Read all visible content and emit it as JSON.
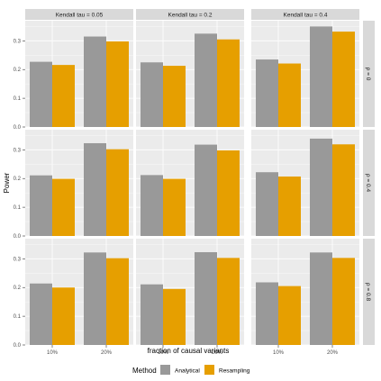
{
  "chart_data": {
    "type": "bar",
    "facet_cols": [
      "Kendall tau = 0.05",
      "Kendall tau = 0.2",
      "Kendall tau = 0.4"
    ],
    "facet_rows": [
      "ρ = 0",
      "ρ = 0.4",
      "ρ = 0.8"
    ],
    "categories": [
      "10%",
      "20%"
    ],
    "series": [
      {
        "name": "Analytical",
        "color": "#999999"
      },
      {
        "name": "Resampling",
        "color": "#E69F00"
      }
    ],
    "values": [
      [
        {
          "Analytical": [
            0.227,
            0.315
          ],
          "Resampling": [
            0.216,
            0.298
          ]
        },
        {
          "Analytical": [
            0.225,
            0.325
          ],
          "Resampling": [
            0.213,
            0.305
          ]
        },
        {
          "Analytical": [
            0.235,
            0.35
          ],
          "Resampling": [
            0.221,
            0.332
          ]
        }
      ],
      [
        {
          "Analytical": [
            0.211,
            0.323
          ],
          "Resampling": [
            0.199,
            0.302
          ]
        },
        {
          "Analytical": [
            0.212,
            0.318
          ],
          "Resampling": [
            0.199,
            0.298
          ]
        },
        {
          "Analytical": [
            0.222,
            0.339
          ],
          "Resampling": [
            0.207,
            0.319
          ]
        }
      ],
      [
        {
          "Analytical": [
            0.214,
            0.322
          ],
          "Resampling": [
            0.2,
            0.302
          ]
        },
        {
          "Analytical": [
            0.211,
            0.323
          ],
          "Resampling": [
            0.195,
            0.303
          ]
        },
        {
          "Analytical": [
            0.218,
            0.322
          ],
          "Resampling": [
            0.205,
            0.303
          ]
        }
      ]
    ],
    "yticks": [
      0.0,
      0.1,
      0.2,
      0.3
    ],
    "ytick_labels": [
      "0.0",
      "0.1",
      "0.2",
      "0.3"
    ],
    "ylim": [
      0,
      0.37
    ],
    "xlabel": "fraction of causal variants",
    "ylabel": "Power",
    "legend_title": "Method",
    "legend_position": "bottom",
    "grid": true,
    "panel_background": "#EBEBEB",
    "strip_background": "#D9D9D9"
  }
}
